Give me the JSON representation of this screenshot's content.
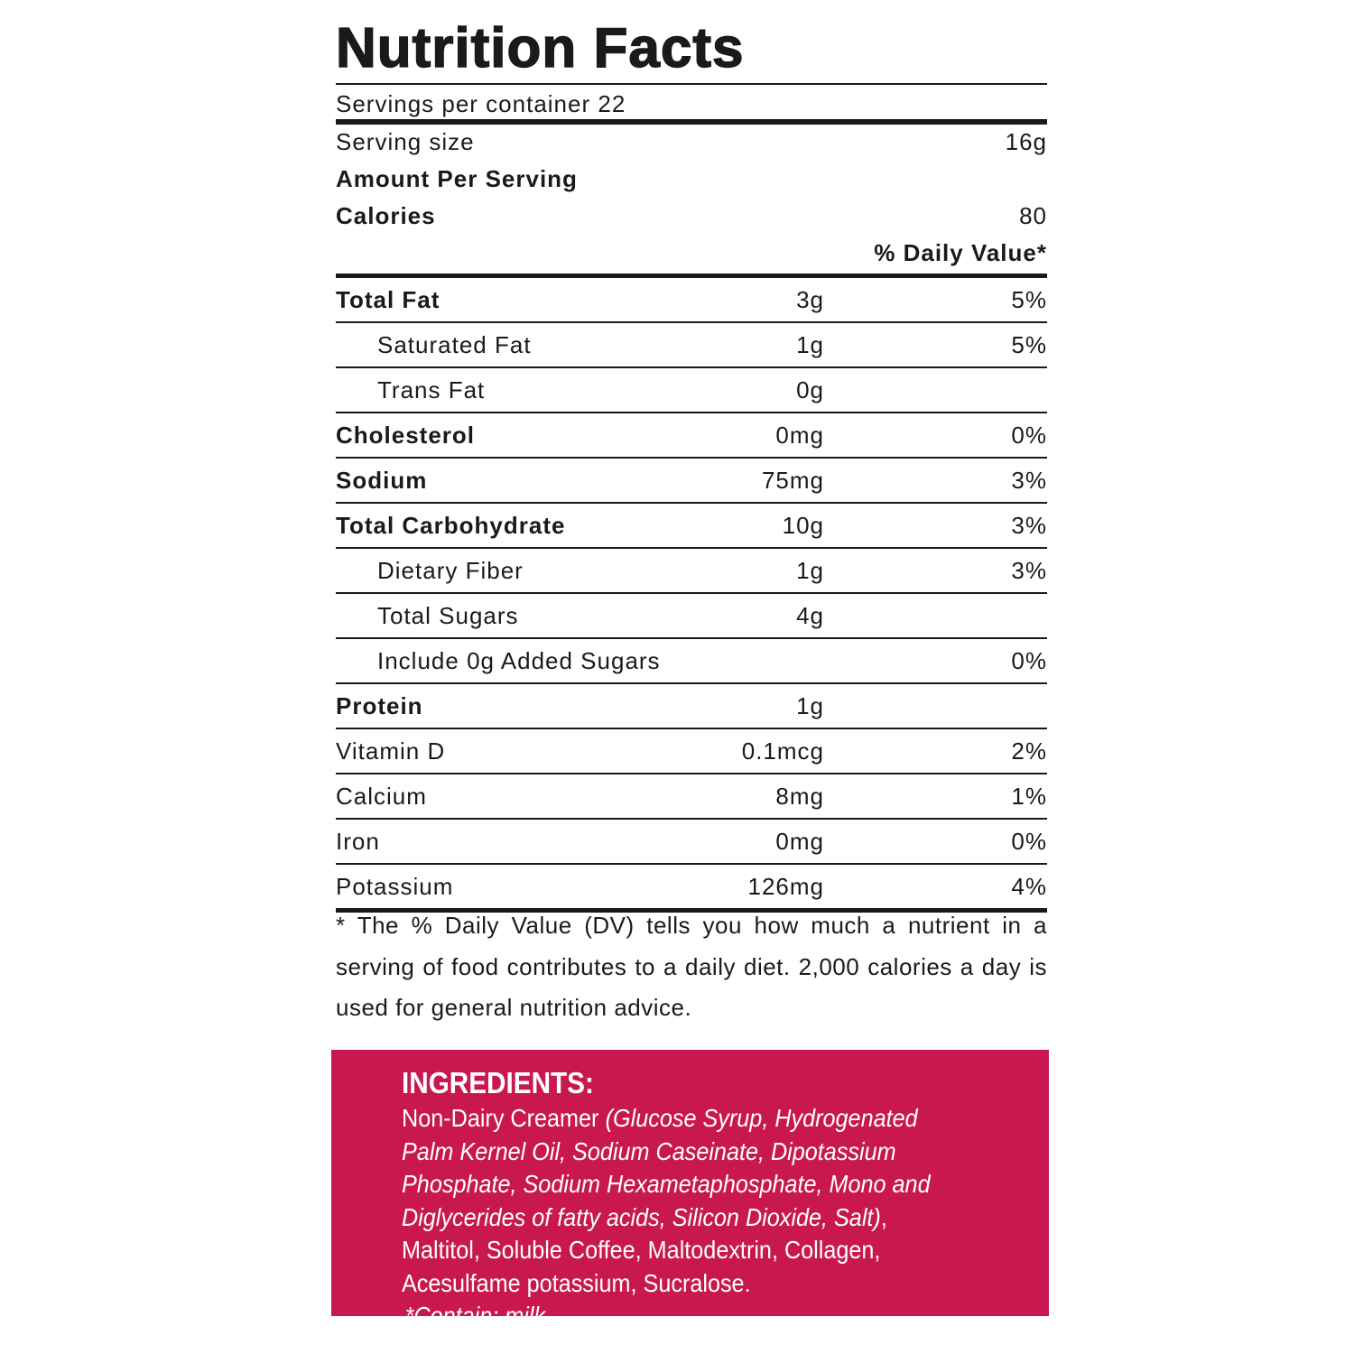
{
  "title": "Nutrition Facts",
  "servings": "Servings per container 22",
  "serving_size": {
    "label": "Serving size",
    "value": "16g"
  },
  "amount_per_serving": "Amount Per Serving",
  "calories": {
    "label": "Calories",
    "value": "80"
  },
  "dv_header": "% Daily Value*",
  "rows": [
    {
      "name": "Total Fat",
      "amount": "3g",
      "dv": "5%",
      "bold": true,
      "indent": false
    },
    {
      "name": "Saturated Fat",
      "amount": "1g",
      "dv": "5%",
      "bold": false,
      "indent": true
    },
    {
      "name": "Trans Fat",
      "amount": "0g",
      "bold": false,
      "indent": true
    },
    {
      "name": "Cholesterol",
      "amount": "0mg",
      "dv": "0%",
      "bold": true,
      "indent": false
    },
    {
      "name": "Sodium",
      "amount": "75mg",
      "dv": "3%",
      "bold": true,
      "indent": false
    },
    {
      "name": "Total Carbohydrate",
      "amount": "10g",
      "dv": "3%",
      "bold": true,
      "indent": false
    },
    {
      "name": "Dietary Fiber",
      "amount": "1g",
      "dv": "3%",
      "bold": false,
      "indent": true
    },
    {
      "name": "Total Sugars",
      "amount": "4g",
      "bold": false,
      "indent": true
    },
    {
      "name": "Include 0g Added Sugars",
      "dv": "0%",
      "bold": false,
      "indent": true
    },
    {
      "name": "Protein",
      "amount": "1g",
      "bold": true,
      "indent": false
    },
    {
      "name": "Vitamin D",
      "amount": "0.1mcg",
      "dv": "2%",
      "bold": false,
      "indent": false
    },
    {
      "name": "Calcium",
      "amount": "8mg",
      "dv": "1%",
      "bold": false,
      "indent": false
    },
    {
      "name": "Iron",
      "amount": "0mg",
      "dv": "0%",
      "bold": false,
      "indent": false
    },
    {
      "name": "Potassium",
      "amount": "126mg",
      "dv": "4%",
      "bold": false,
      "indent": false
    }
  ],
  "footnote": "* The % Daily Value (DV) tells you how much a nutrient in a serving of food contributes to a daily diet. 2,000 calories a day is used for general nutrition advice.",
  "ingredients": {
    "heading": "INGREDIENTS:",
    "segments": [
      {
        "text": "Non-Dairy Creamer",
        "italic": false
      },
      {
        "text": "(Glucose Syrup, Hydrogenated Palm Kernel Oil, Sodium Caseinate, Dipotassium Phosphate, Sodium Hexametaphosphate, Mono and Diglycerides of fatty acids, Silicon Dioxide, Salt)",
        "italic": true
      },
      {
        "text": ", Maltitol, Soluble Coffee, Maltodextrin, Collagen, Acesulfame potassium, Sucralose.",
        "italic": false
      },
      {
        "text": "*Contain: milk.",
        "italic": true
      }
    ]
  }
}
